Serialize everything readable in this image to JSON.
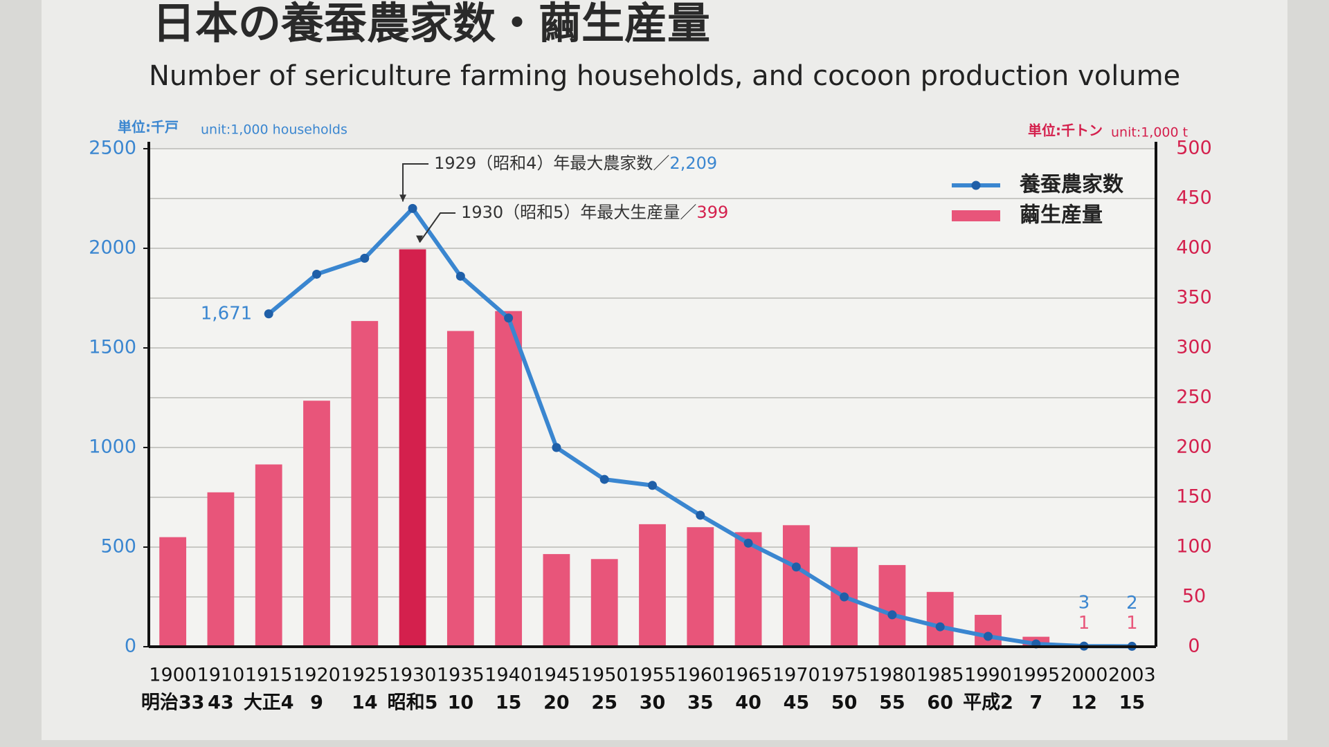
{
  "chart_data": {
    "type": "combo",
    "title": "日本の養蚕農家数・繭生産量",
    "subtitle": "Number of sericulture farming households, and cocoon production volume",
    "y_unit": "単位:千戸",
    "y_unit_en": "unit:1,000 households",
    "y2_unit": "単位:千トン",
    "y2_unit_en": "unit:1,000 t",
    "categories": [
      "1900",
      "1910",
      "1915",
      "1920",
      "1925",
      "1930",
      "1935",
      "1940",
      "1945",
      "1950",
      "1955",
      "1960",
      "1965",
      "1970",
      "1975",
      "1980",
      "1985",
      "1990",
      "1995",
      "2000",
      "2003"
    ],
    "era_labels": [
      "明治33",
      "43",
      "大正4",
      "9",
      "14",
      "昭和5",
      "10",
      "15",
      "20",
      "25",
      "30",
      "35",
      "40",
      "45",
      "50",
      "55",
      "60",
      "平成2",
      "7",
      "12",
      "15"
    ],
    "ylim": [
      0,
      2500
    ],
    "yticks": [
      0,
      500,
      1000,
      1500,
      2000,
      2500
    ],
    "y2lim": [
      0,
      500
    ],
    "y2ticks": [
      0,
      50,
      100,
      150,
      200,
      250,
      300,
      350,
      400,
      450,
      500
    ],
    "grid": true,
    "legend": "upper right",
    "highlight_category": "1930",
    "highlight_color": "#d4204d",
    "series": [
      {
        "name": "養蚕農家数",
        "type": "line",
        "axis": "y",
        "color": "#3a86d0",
        "values": [
          null,
          null,
          1671,
          1870,
          1950,
          2200,
          1860,
          1650,
          1000,
          840,
          810,
          660,
          520,
          400,
          250,
          160,
          100,
          52,
          14,
          3,
          2
        ],
        "value_labels": [
          null,
          null,
          "1,671",
          null,
          null,
          null,
          null,
          null,
          null,
          null,
          null,
          null,
          null,
          null,
          null,
          null,
          null,
          null,
          null,
          "3",
          "2"
        ]
      },
      {
        "name": "繭生産量",
        "type": "bar",
        "axis": "y2",
        "color": "#e8557a",
        "values": [
          110,
          155,
          183,
          247,
          327,
          399,
          317,
          337,
          93,
          88,
          123,
          120,
          115,
          122,
          100,
          82,
          55,
          32,
          10,
          1,
          1
        ],
        "value_labels": [
          null,
          null,
          null,
          null,
          null,
          null,
          null,
          null,
          null,
          null,
          null,
          null,
          null,
          null,
          null,
          null,
          null,
          null,
          null,
          "1",
          "1"
        ]
      }
    ],
    "annotations": [
      {
        "text": "1929（昭和4）年最大農家数／",
        "value_label": "2,209"
      },
      {
        "text": "1930（昭和5）年最大生産量／",
        "value_label": "399"
      }
    ]
  }
}
